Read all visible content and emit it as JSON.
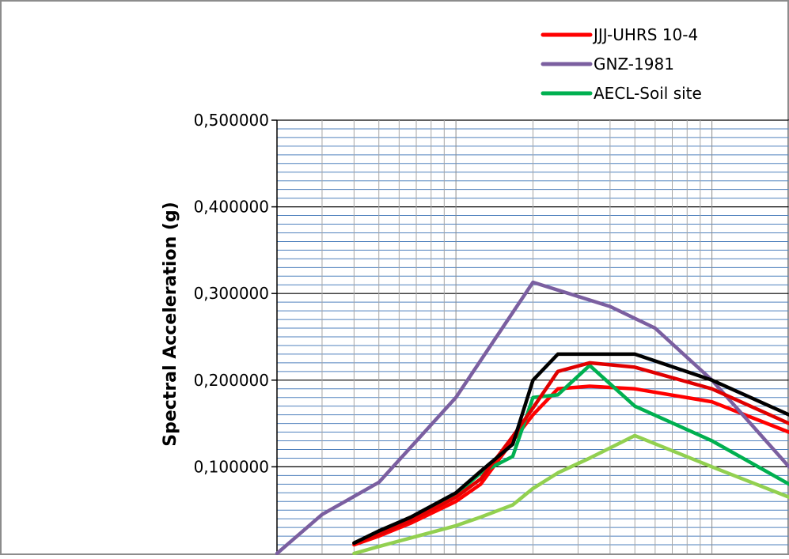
{
  "chart_data": {
    "type": "line",
    "title": "",
    "xlabel": "",
    "ylabel": "Spectral  Acceleration (g)",
    "x_scale": "log",
    "xlim": [
      0.02,
      2
    ],
    "ylim": [
      0,
      0.5
    ],
    "y_ticks": [
      0.1,
      0.2,
      0.3,
      0.4,
      0.5
    ],
    "y_tick_labels": [
      "0,100000",
      "0,200000",
      "0,300000",
      "0,400000",
      "0,500000"
    ],
    "grid": true,
    "legend_position": "top-right",
    "series": [
      {
        "name": "JJJ-UHRS 10-4",
        "color": "#ff0000",
        "x": [
          0.04,
          0.05,
          0.0667,
          0.1,
          0.125,
          0.1667,
          0.2,
          0.25,
          0.333,
          0.5,
          1.0,
          2.0
        ],
        "y": [
          0.01,
          0.02,
          0.035,
          0.06,
          0.08,
          0.13,
          0.16,
          0.19,
          0.193,
          0.19,
          0.175,
          0.14
        ]
      },
      {
        "name": "GNZ-1981",
        "color": "#7b5fa0",
        "x": [
          0.02,
          0.03,
          0.05,
          0.1,
          0.2,
          0.4,
          0.6,
          1.0,
          2.0
        ],
        "y": [
          0.0,
          0.045,
          0.082,
          0.18,
          0.313,
          0.285,
          0.26,
          0.2,
          0.1
        ]
      },
      {
        "name": "AECL-Soil site",
        "color": "#00b050",
        "x": [
          0.04,
          0.05,
          0.0667,
          0.1,
          0.125,
          0.1667,
          0.2,
          0.25,
          0.333,
          0.5,
          1.0,
          2.0
        ],
        "y": [
          0.012,
          0.025,
          0.04,
          0.068,
          0.093,
          0.112,
          0.18,
          0.183,
          0.217,
          0.17,
          0.13,
          0.08
        ]
      },
      {
        "name": "",
        "color": "#e00000",
        "x": [
          0.04,
          0.05,
          0.0667,
          0.1,
          0.125,
          0.1667,
          0.2,
          0.25,
          0.333,
          0.5,
          1.0,
          2.0
        ],
        "y": [
          0.012,
          0.022,
          0.038,
          0.065,
          0.086,
          0.135,
          0.168,
          0.21,
          0.22,
          0.215,
          0.19,
          0.15
        ]
      },
      {
        "name": "",
        "color": "#000000",
        "x": [
          0.04,
          0.05,
          0.0667,
          0.1,
          0.125,
          0.1667,
          0.2,
          0.25,
          0.333,
          0.5,
          1.0,
          2.0
        ],
        "y": [
          0.012,
          0.026,
          0.042,
          0.07,
          0.095,
          0.126,
          0.2,
          0.23,
          0.23,
          0.23,
          0.2,
          0.16
        ]
      },
      {
        "name": "",
        "color": "#92d050",
        "x": [
          0.04,
          0.05,
          0.0667,
          0.1,
          0.125,
          0.1667,
          0.2,
          0.25,
          0.333,
          0.5,
          1.0,
          2.0
        ],
        "y": [
          0.0,
          0.008,
          0.018,
          0.032,
          0.042,
          0.056,
          0.075,
          0.093,
          0.11,
          0.136,
          0.1,
          0.065
        ]
      }
    ]
  }
}
